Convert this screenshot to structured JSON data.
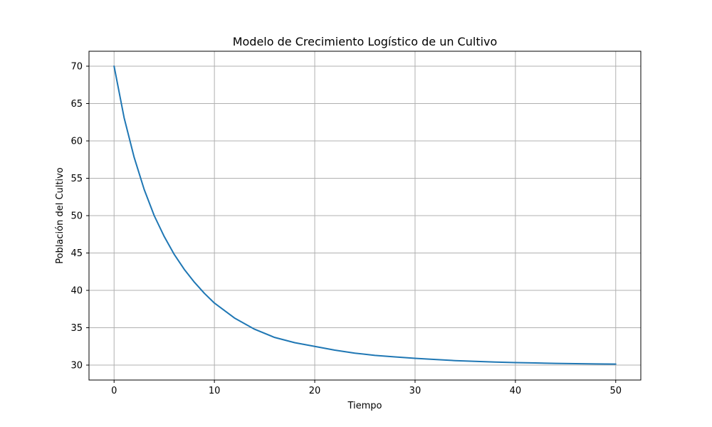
{
  "chart_data": {
    "type": "line",
    "title": "Modelo de Crecimiento Logístico de un Cultivo",
    "xlabel": "Tiempo",
    "ylabel": "Población del Cultivo",
    "xlim": [
      -2.5,
      52.5
    ],
    "ylim": [
      28,
      72
    ],
    "xticks": [
      0,
      10,
      20,
      30,
      40,
      50
    ],
    "yticks": [
      30,
      35,
      40,
      45,
      50,
      55,
      60,
      65,
      70
    ],
    "grid": true,
    "series": [
      {
        "color": "#1f77b4",
        "x": [
          0,
          1,
          2,
          3,
          4,
          5,
          6,
          7,
          8,
          9,
          10,
          12,
          14,
          16,
          18,
          20,
          22,
          24,
          26,
          28,
          30,
          32,
          34,
          36,
          38,
          40,
          42,
          44,
          46,
          48,
          50
        ],
        "y": [
          70.0,
          63.1,
          57.8,
          53.5,
          50.0,
          47.2,
          44.8,
          42.8,
          41.1,
          39.6,
          38.3,
          36.3,
          34.8,
          33.7,
          33.0,
          32.5,
          32.0,
          31.6,
          31.3,
          31.1,
          30.9,
          30.75,
          30.6,
          30.5,
          30.4,
          30.33,
          30.28,
          30.23,
          30.19,
          30.16,
          30.13
        ]
      }
    ]
  }
}
